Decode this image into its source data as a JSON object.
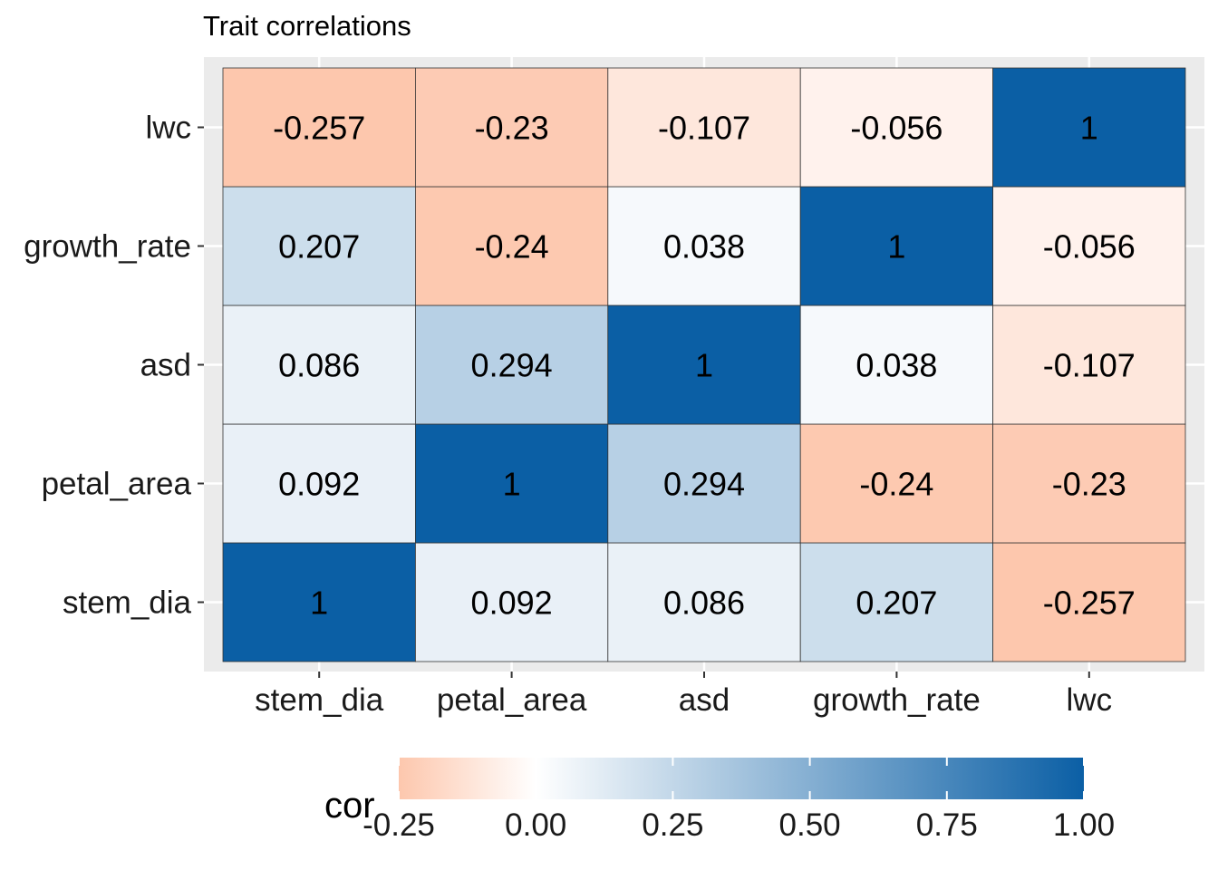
{
  "chart_data": {
    "type": "heatmap",
    "title": "Trait correlations",
    "x_categories": [
      "stem_dia",
      "petal_area",
      "asd",
      "growth_rate",
      "lwc"
    ],
    "y_categories": [
      "stem_dia",
      "petal_area",
      "asd",
      "growth_rate",
      "lwc"
    ],
    "matrix": [
      [
        1,
        0.092,
        0.086,
        0.207,
        -0.257
      ],
      [
        0.092,
        1,
        0.294,
        -0.24,
        -0.23
      ],
      [
        0.086,
        0.294,
        1,
        0.038,
        -0.107
      ],
      [
        0.207,
        -0.24,
        0.038,
        1,
        -0.056
      ],
      [
        -0.257,
        -0.23,
        -0.107,
        -0.056,
        1
      ]
    ],
    "legend": {
      "title": "cor",
      "placement": "bottom",
      "range": [
        -0.25,
        1.0
      ],
      "ticks": [
        "-0.25",
        "0.00",
        "0.25",
        "0.50",
        "0.75",
        "1.00"
      ],
      "tick_values": [
        -0.25,
        0,
        0.25,
        0.5,
        0.75,
        1.0
      ]
    },
    "colors": {
      "low": "#fdc7ad",
      "mid": "#ffffff",
      "high": "#0b5fa5",
      "panel_background": "#ebebeb",
      "cell_border": "#333333"
    }
  }
}
